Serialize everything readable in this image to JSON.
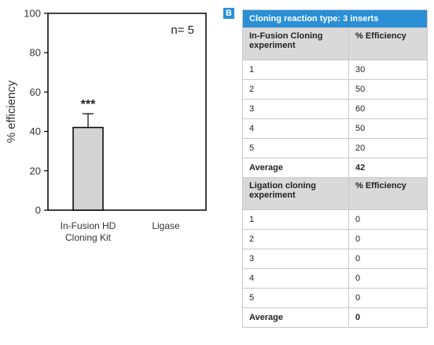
{
  "chart_data": {
    "type": "bar",
    "categories": [
      "In-Fusion HD\nCloning Kit",
      "Ligase"
    ],
    "values": [
      42,
      0
    ],
    "error": [
      7,
      0
    ],
    "significance": [
      "***",
      ""
    ],
    "ylabel": "% efficiency",
    "ylim": [
      0,
      100
    ],
    "yticks": [
      0,
      20,
      40,
      60,
      80,
      100
    ],
    "annotation": "n= 5",
    "bar_color": "#d3d3d3"
  },
  "panel_letter": "B",
  "table": {
    "title": "Cloning reaction type: 3 inserts",
    "groups": [
      {
        "header": [
          "In-Fusion Cloning experiment",
          "% Efficiency"
        ],
        "rows": [
          [
            "1",
            "30"
          ],
          [
            "2",
            "50"
          ],
          [
            "3",
            "60"
          ],
          [
            "4",
            "50"
          ],
          [
            "5",
            "20"
          ]
        ],
        "average": [
          "Average",
          "42"
        ]
      },
      {
        "header": [
          "Ligation cloning experiment",
          "% Efficiency"
        ],
        "rows": [
          [
            "1",
            "0"
          ],
          [
            "2",
            "0"
          ],
          [
            "3",
            "0"
          ],
          [
            "4",
            "0"
          ],
          [
            "5",
            "0"
          ]
        ],
        "average": [
          "Average",
          "0"
        ]
      }
    ]
  }
}
